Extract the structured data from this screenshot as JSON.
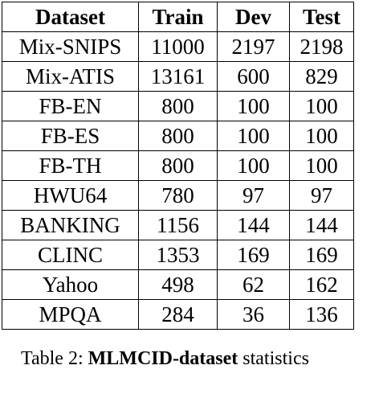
{
  "table": {
    "headers": [
      "Dataset",
      "Train",
      "Dev",
      "Test"
    ],
    "rows": [
      [
        "Mix-SNIPS",
        "11000",
        "2197",
        "2198"
      ],
      [
        "Mix-ATIS",
        "13161",
        "600",
        "829"
      ],
      [
        "FB-EN",
        "800",
        "100",
        "100"
      ],
      [
        "FB-ES",
        "800",
        "100",
        "100"
      ],
      [
        "FB-TH",
        "800",
        "100",
        "100"
      ],
      [
        "HWU64",
        "780",
        "97",
        "97"
      ],
      [
        "BANKING",
        "1156",
        "144",
        "144"
      ],
      [
        "CLINC",
        "1353",
        "169",
        "169"
      ],
      [
        "Yahoo",
        "498",
        "62",
        "162"
      ],
      [
        "MPQA",
        "284",
        "36",
        "136"
      ]
    ]
  },
  "caption": {
    "prefix": "Table 2: ",
    "bold": "MLMCID-dataset",
    "suffix": " statistics"
  }
}
